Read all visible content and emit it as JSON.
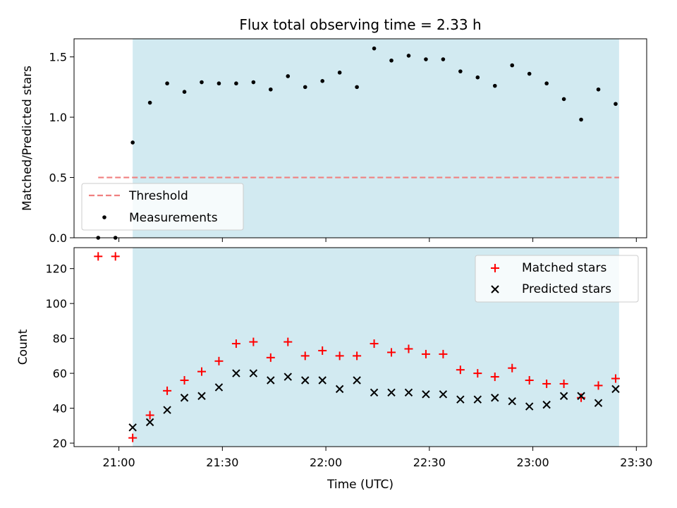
{
  "chart_data": [
    {
      "type": "scatter",
      "title": "Flux total observing time = 2.33 h",
      "xlabel": "",
      "ylabel": "Matched/Predicted stars",
      "ylim": [
        0,
        1.65
      ],
      "xlim": [
        "20:47",
        "23:33"
      ],
      "yticks": [
        0.0,
        0.5,
        1.0,
        1.5
      ],
      "ytick_labels": [
        "0.0",
        "0.5",
        "1.0",
        "1.5"
      ],
      "shaded_region": {
        "from": "21:04",
        "to": "23:25",
        "color": "#add8e6"
      },
      "threshold": {
        "name": "Threshold",
        "value": 0.5,
        "from": "20:54",
        "to": "23:25",
        "color": "#f08080"
      },
      "series": [
        {
          "name": "Measurements",
          "marker": "dot",
          "color": "#000000",
          "x": [
            "20:54",
            "20:59",
            "21:04",
            "21:09",
            "21:14",
            "21:19",
            "21:24",
            "21:29",
            "21:34",
            "21:39",
            "21:44",
            "21:49",
            "21:54",
            "21:59",
            "22:04",
            "22:09",
            "22:14",
            "22:19",
            "22:24",
            "22:29",
            "22:34",
            "22:39",
            "22:44",
            "22:49",
            "22:54",
            "22:59",
            "23:04",
            "23:09",
            "23:14",
            "23:19",
            "23:24"
          ],
          "y": [
            0.0,
            0.0,
            0.79,
            1.12,
            1.28,
            1.21,
            1.29,
            1.28,
            1.28,
            1.29,
            1.23,
            1.34,
            1.25,
            1.3,
            1.37,
            1.25,
            1.57,
            1.47,
            1.51,
            1.48,
            1.48,
            1.38,
            1.33,
            1.26,
            1.43,
            1.36,
            1.28,
            1.15,
            0.98,
            1.23,
            1.11
          ]
        }
      ],
      "legend": {
        "position": "lower-left",
        "entries": [
          "Threshold",
          "Measurements"
        ]
      }
    },
    {
      "type": "scatter",
      "title": "",
      "xlabel": "Time (UTC)",
      "ylabel": "Count",
      "ylim": [
        18,
        132
      ],
      "xlim": [
        "20:47",
        "23:33"
      ],
      "yticks": [
        20,
        40,
        60,
        80,
        100,
        120
      ],
      "xticks": [
        "21:00",
        "21:30",
        "22:00",
        "22:30",
        "23:00",
        "23:30"
      ],
      "shaded_region": {
        "from": "21:04",
        "to": "23:25",
        "color": "#add8e6"
      },
      "series": [
        {
          "name": "Matched stars",
          "marker": "plus",
          "color": "#ff0000",
          "x": [
            "20:54",
            "20:59",
            "21:04",
            "21:09",
            "21:14",
            "21:19",
            "21:24",
            "21:29",
            "21:34",
            "21:39",
            "21:44",
            "21:49",
            "21:54",
            "21:59",
            "22:04",
            "22:09",
            "22:14",
            "22:19",
            "22:24",
            "22:29",
            "22:34",
            "22:39",
            "22:44",
            "22:49",
            "22:54",
            "22:59",
            "23:04",
            "23:09",
            "23:14",
            "23:19",
            "23:24"
          ],
          "y": [
            127,
            127,
            23,
            36,
            50,
            56,
            61,
            67,
            77,
            78,
            69,
            78,
            70,
            73,
            70,
            70,
            77,
            72,
            74,
            71,
            71,
            62,
            60,
            58,
            63,
            56,
            54,
            54,
            46,
            53,
            57
          ]
        },
        {
          "name": "Predicted stars",
          "marker": "x",
          "color": "#000000",
          "x": [
            "21:04",
            "21:09",
            "21:14",
            "21:19",
            "21:24",
            "21:29",
            "21:34",
            "21:39",
            "21:44",
            "21:49",
            "21:54",
            "21:59",
            "22:04",
            "22:09",
            "22:14",
            "22:19",
            "22:24",
            "22:29",
            "22:34",
            "22:39",
            "22:44",
            "22:49",
            "22:54",
            "22:59",
            "23:04",
            "23:09",
            "23:14",
            "23:19",
            "23:24"
          ],
          "y": [
            29,
            32,
            39,
            46,
            47,
            52,
            60,
            60,
            56,
            58,
            56,
            56,
            51,
            56,
            49,
            49,
            49,
            48,
            48,
            45,
            45,
            46,
            44,
            41,
            42,
            47,
            47,
            43,
            51
          ]
        }
      ],
      "legend": {
        "position": "upper-right",
        "entries": [
          "Matched stars",
          "Predicted stars"
        ]
      }
    }
  ]
}
